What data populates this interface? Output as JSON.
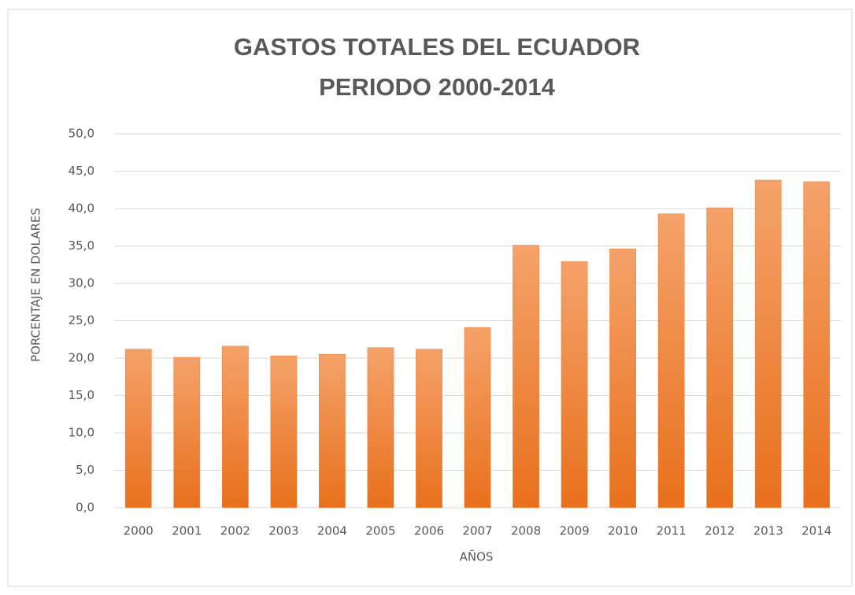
{
  "chart_data": {
    "type": "bar",
    "title": [
      "GASTOS TOTALES DEL ECUADOR",
      "PERIODO 2000-2014"
    ],
    "x_label": "AÑOS",
    "y_label": "PORCENTAJE EN DOLARES",
    "categories": [
      "2000",
      "2001",
      "2002",
      "2003",
      "2004",
      "2005",
      "2006",
      "2007",
      "2008",
      "2009",
      "2010",
      "2011",
      "2012",
      "2013",
      "2014"
    ],
    "values": [
      21.2,
      20.1,
      21.6,
      20.3,
      20.5,
      21.4,
      21.2,
      24.1,
      35.1,
      32.9,
      34.6,
      39.3,
      40.1,
      43.8,
      43.6
    ],
    "color": "#ed7d31",
    "ylim": [
      0,
      50
    ],
    "yticks": [
      {
        "value": 0,
        "label": "0,0"
      },
      {
        "value": 5,
        "label": "5,0"
      },
      {
        "value": 10,
        "label": "10,0"
      },
      {
        "value": 15,
        "label": "15,0"
      },
      {
        "value": 20,
        "label": "20,0"
      },
      {
        "value": 25,
        "label": "25,0"
      },
      {
        "value": 30,
        "label": "30,0"
      },
      {
        "value": 35,
        "label": "35,0"
      },
      {
        "value": 40,
        "label": "40,0"
      },
      {
        "value": 45,
        "label": "45,0"
      },
      {
        "value": 50,
        "label": "50,0"
      }
    ],
    "grid": true
  }
}
